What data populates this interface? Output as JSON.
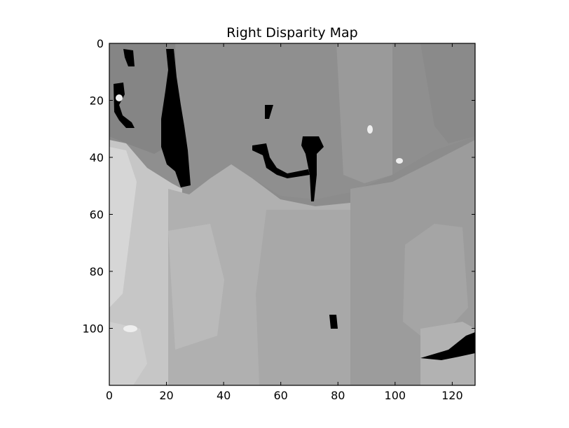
{
  "chart_data": {
    "type": "heatmap",
    "title": "Right Disparity Map",
    "xlabel": "",
    "ylabel": "",
    "colormap": "gray",
    "grid": false,
    "xlim": [
      0,
      128
    ],
    "ylim": [
      120,
      0
    ],
    "x_ticks": [
      0,
      20,
      40,
      60,
      80,
      100,
      120
    ],
    "y_ticks": [
      0,
      20,
      40,
      60,
      80,
      100
    ],
    "x_tick_labels": [
      "0",
      "20",
      "40",
      "60",
      "80",
      "100",
      "120"
    ],
    "y_tick_labels": [
      "0",
      "20",
      "40",
      "60",
      "80",
      "100"
    ],
    "regions": [
      {
        "name": "upper background",
        "gray": 0.55
      },
      {
        "name": "lower left surface",
        "gray": 0.78
      },
      {
        "name": "lower middle surface",
        "gray": 0.68
      },
      {
        "name": "right column",
        "gray": 0.6
      },
      {
        "name": "black holes (invalid disparity)",
        "gray": 0.0
      }
    ]
  }
}
